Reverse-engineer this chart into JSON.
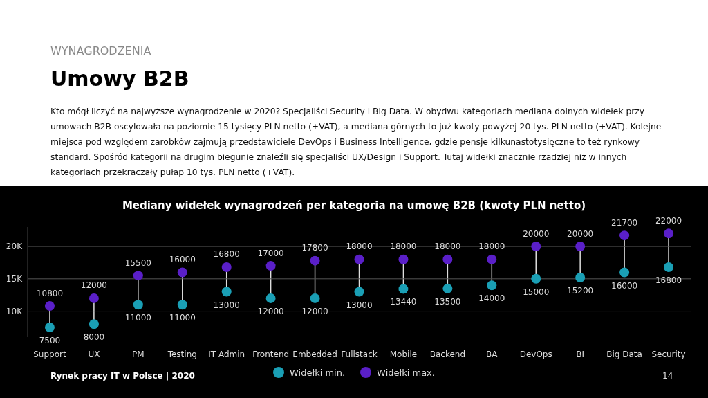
{
  "chart_data": {
    "type": "scatter",
    "title": "Mediany widełek wynagrodzeń per kategoria na umowę B2B (kwoty PLN netto)",
    "annotations": [
      "WYNAGRODZENIA",
      "Umowy B2B",
      "Kto mógł liczyć na najwyższe wynagrodzenie w 2020? Specjaliści Security i Big Data. W obydwu kategoriach mediana dolnych widełek przy umowach B2B oscylowała na poziomie 15 tysięcy PLN netto (+VAT), a mediana górnych to już kwoty powyżej 20 tys. PLN netto (+VAT). Kolejne miejsca pod względem zarobków zajmują przedstawiciele DevOps i Business Intelligence, gdzie pensje kilkunastotysięczne to też rynkowy standard. Spośród kategorii na drugim biegunie znaleźli się specjaliści UX/Design i Support. Tutaj widełki znacznie rzadziej niż w innych kategoriach przekraczały pułap 10 tys. PLN netto (+VAT).",
      "Rynek pracy IT w Polsce | 2020",
      "14"
    ],
    "categories": [
      "Support",
      "UX",
      "PM",
      "Testing",
      "IT Admin",
      "Frontend",
      "Embedded",
      "Fullstack",
      "Mobile",
      "Backend",
      "BA",
      "DevOps",
      "BI",
      "Big Data",
      "Security"
    ],
    "series": [
      {
        "name": "Widełki min.",
        "color": "#1a9fb5",
        "values": [
          7500,
          8000,
          11000,
          11000,
          13000,
          12000,
          12000,
          13000,
          13440,
          13500,
          14000,
          15000,
          15200,
          16000,
          16800
        ]
      },
      {
        "name": "Widełki max.",
        "color": "#5a1fc8",
        "values": [
          10800,
          12000,
          15500,
          16000,
          16800,
          17000,
          17800,
          18000,
          18000,
          18000,
          18000,
          20000,
          20000,
          21700,
          22000
        ]
      }
    ],
    "ylim": [
      6000,
      23000
    ],
    "yticks": [
      {
        "value": 10000,
        "label": "10K"
      },
      {
        "value": 15000,
        "label": "15K"
      },
      {
        "value": 20000,
        "label": "20K"
      }
    ],
    "grid": "y",
    "legend": "bottom",
    "marker": "circle",
    "data_labels": true
  }
}
